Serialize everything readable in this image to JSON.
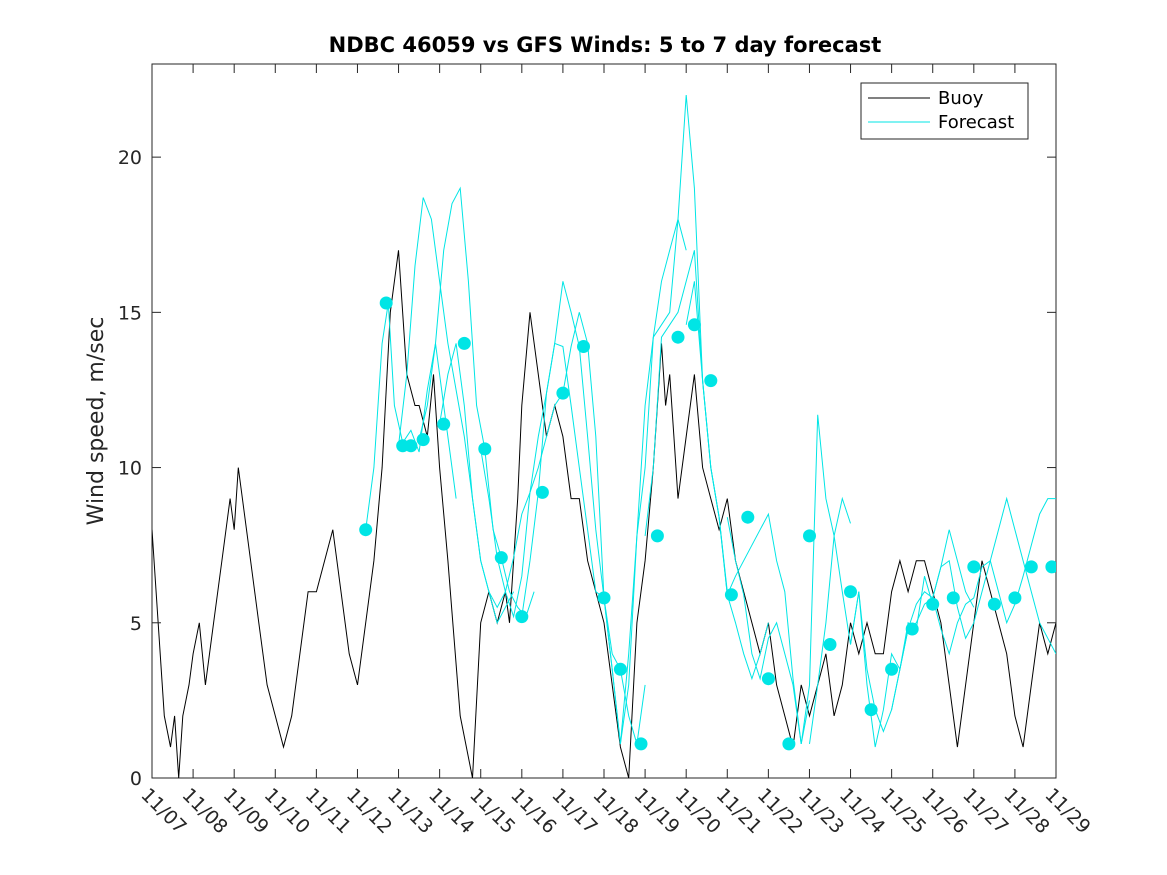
{
  "chart_data": {
    "type": "line",
    "title": "NDBC 46059 vs GFS Winds: 5 to 7 day forecast",
    "xlabel": "",
    "ylabel": "Wind speed, m/sec",
    "xlim": [
      0,
      22
    ],
    "ylim": [
      0,
      23
    ],
    "yticks": [
      0,
      5,
      10,
      15,
      20
    ],
    "xtick_labels": [
      "11/07",
      "11/08",
      "11/09",
      "11/10",
      "11/11",
      "11/12",
      "11/13",
      "11/14",
      "11/15",
      "11/16",
      "11/17",
      "11/18",
      "11/19",
      "11/20",
      "11/21",
      "11/22",
      "11/23",
      "11/24",
      "11/25",
      "11/26",
      "11/27",
      "11/28",
      "11/29"
    ],
    "legend": {
      "position": "top-right",
      "entries": [
        "Buoy",
        "Forecast"
      ]
    },
    "colors": {
      "buoy": "#000000",
      "forecast": "#00e5e5",
      "axis": "#262626"
    },
    "series": [
      {
        "name": "Buoy",
        "x": [
          0.0,
          0.1,
          0.2,
          0.3,
          0.45,
          0.55,
          0.65,
          0.75,
          0.9,
          1.0,
          1.15,
          1.3,
          1.5,
          1.7,
          1.9,
          2.0,
          2.1,
          2.2,
          2.4,
          2.6,
          2.8,
          3.0,
          3.2,
          3.4,
          3.6,
          3.8,
          4.0,
          4.2,
          4.4,
          4.6,
          4.8,
          5.0,
          5.2,
          5.4,
          5.6,
          5.8,
          6.0,
          6.2,
          6.4,
          6.5,
          6.7,
          6.85,
          7.0,
          7.2,
          7.5,
          7.8,
          8.0,
          8.2,
          8.4,
          8.6,
          8.7,
          8.8,
          8.9,
          9.0,
          9.2,
          9.4,
          9.6,
          9.8,
          10.0,
          10.2,
          10.4,
          10.6,
          10.8,
          11.0,
          11.2,
          11.4,
          11.6,
          11.8,
          12.0,
          12.2,
          12.4,
          12.5,
          12.6,
          12.7,
          12.8,
          13.0,
          13.2,
          13.4,
          13.6,
          13.8,
          14.0,
          14.2,
          14.4,
          14.6,
          14.8,
          15.0,
          15.2,
          15.4,
          15.6,
          15.8,
          16.0,
          16.2,
          16.4,
          16.6,
          16.8,
          17.0,
          17.2,
          17.4,
          17.6,
          17.8,
          18.0,
          18.2,
          18.4,
          18.6,
          18.8,
          19.0,
          19.2,
          19.4,
          19.6,
          19.8,
          20.0,
          20.2,
          20.4,
          20.6,
          20.8,
          21.0,
          21.2,
          21.4,
          21.6,
          21.8,
          22.0
        ],
        "values": [
          8,
          6,
          4,
          2,
          1,
          2,
          0,
          2,
          3,
          4,
          5,
          3,
          5,
          7,
          9,
          8,
          10,
          9,
          7,
          5,
          3,
          2,
          1,
          2,
          4,
          6,
          6,
          7,
          8,
          6,
          4,
          3,
          5,
          7,
          10,
          15,
          17,
          13,
          12,
          12,
          11,
          13,
          10,
          7,
          2,
          0,
          5,
          6,
          5,
          6,
          5,
          7,
          9,
          12,
          15,
          13,
          11,
          12,
          11,
          9,
          9,
          7,
          6,
          5,
          3,
          1,
          0,
          5,
          7,
          10,
          14,
          12,
          13,
          11,
          9,
          11,
          13,
          10,
          9,
          8,
          9,
          7,
          6,
          5,
          4,
          5,
          3,
          2,
          1,
          3,
          2,
          3,
          4,
          2,
          3,
          5,
          4,
          5,
          4,
          4,
          6,
          7,
          6,
          7,
          7,
          6,
          5,
          3,
          1,
          3,
          5,
          7,
          6,
          5,
          4,
          2,
          1,
          3,
          5,
          4,
          5
        ]
      },
      {
        "name": "Forecast",
        "segments": [
          {
            "x": [
              5.2,
              5.4,
              5.6,
              5.75,
              5.9,
              6.1,
              6.3,
              6.5,
              6.7,
              6.9,
              7.1,
              7.3,
              7.4
            ],
            "values": [
              8.0,
              10.0,
              14.0,
              15.3,
              12.0,
              10.8,
              11.2,
              10.5,
              12.5,
              14.0,
              12.0,
              10.0,
              9.0
            ]
          },
          {
            "x": [
              6.0,
              6.2,
              6.4,
              6.6,
              6.8,
              7.0,
              7.2,
              7.4,
              7.6,
              7.8,
              8.0,
              8.2,
              8.4,
              8.6,
              8.8
            ],
            "values": [
              10.7,
              13.0,
              16.5,
              18.7,
              18.0,
              16.0,
              14.0,
              12.5,
              11.0,
              9.0,
              7.0,
              6.0,
              5.0,
              5.5,
              6.0
            ]
          },
          {
            "x": [
              6.5,
              6.7,
              6.9,
              7.1,
              7.3,
              7.5,
              7.7,
              7.9,
              8.1,
              8.3,
              8.5,
              8.7,
              8.9,
              9.1,
              9.3
            ],
            "values": [
              10.9,
              12.0,
              14.0,
              17.0,
              18.5,
              19.0,
              16.0,
              12.0,
              10.6,
              8.0,
              7.1,
              6.0,
              5.5,
              5.2,
              6.0
            ]
          },
          {
            "x": [
              7.0,
              7.2,
              7.4,
              7.6,
              7.8,
              8.0,
              8.2,
              8.4,
              8.6,
              8.8,
              9.0,
              9.2,
              9.4,
              9.6,
              9.8,
              10.0
            ],
            "values": [
              11.4,
              13.0,
              14.0,
              12.0,
              9.0,
              7.0,
              6.0,
              5.5,
              6.0,
              7.1,
              8.5,
              9.2,
              10.0,
              11.0,
              12.0,
              12.4
            ]
          },
          {
            "x": [
              8.0,
              8.2,
              8.4,
              8.6,
              8.8,
              9.0,
              9.2,
              9.4,
              9.6,
              9.8,
              10.0,
              10.2,
              10.4,
              10.6,
              10.8,
              11.0
            ],
            "values": [
              10.6,
              9.0,
              7.1,
              6.0,
              5.2,
              6.5,
              9.2,
              11.0,
              12.4,
              14.0,
              13.9,
              12.0,
              10.0,
              8.0,
              6.0,
              5.8
            ]
          },
          {
            "x": [
              9.0,
              9.2,
              9.4,
              9.6,
              9.8,
              10.0,
              10.2,
              10.4,
              10.6,
              10.8,
              11.0,
              11.2,
              11.4,
              11.6,
              11.8,
              12.0
            ],
            "values": [
              5.2,
              7.0,
              9.2,
              12.4,
              14.0,
              16.0,
              15.0,
              13.9,
              11.0,
              8.0,
              5.8,
              4.0,
              3.5,
              2.0,
              1.1,
              3.0
            ]
          },
          {
            "x": [
              10.0,
              10.2,
              10.4,
              10.6,
              10.8,
              11.0,
              11.2,
              11.4,
              11.6,
              11.8,
              12.0,
              12.2,
              12.4,
              12.6,
              12.8,
              13.0
            ],
            "values": [
              12.4,
              13.9,
              15.0,
              14.0,
              11.0,
              5.8,
              3.5,
              1.1,
              4.0,
              7.8,
              10.0,
              14.2,
              16.0,
              17.0,
              18.0,
              17.0
            ]
          },
          {
            "x": [
              11.0,
              11.2,
              11.4,
              11.6,
              11.8,
              12.0,
              12.2,
              12.4,
              12.6,
              12.8,
              13.0,
              13.2,
              13.4,
              13.6,
              13.8,
              14.0
            ],
            "values": [
              5.8,
              3.5,
              1.1,
              3.0,
              7.8,
              12.0,
              14.2,
              14.6,
              15.0,
              18.0,
              22.0,
              19.0,
              12.8,
              10.0,
              8.4,
              6.0
            ]
          },
          {
            "x": [
              12.0,
              12.2,
              12.4,
              12.6,
              12.8,
              13.0,
              13.2,
              13.4,
              13.6,
              13.8,
              14.0,
              14.2,
              14.4,
              14.6,
              14.8,
              15.0
            ],
            "values": [
              7.8,
              10.0,
              14.2,
              14.6,
              15.0,
              16.0,
              17.0,
              12.8,
              10.0,
              8.4,
              5.9,
              5.0,
              4.0,
              3.2,
              4.0,
              5.0
            ]
          },
          {
            "x": [
              13.0,
              13.2,
              13.4,
              13.6,
              13.8,
              14.0,
              14.2,
              14.4,
              14.6,
              14.8,
              15.0,
              15.2,
              15.4,
              15.6,
              15.8,
              16.0
            ],
            "values": [
              14.6,
              16.0,
              12.8,
              10.0,
              8.4,
              5.9,
              6.5,
              7.0,
              7.5,
              8.0,
              8.5,
              7.0,
              6.0,
              3.2,
              1.1,
              2.5
            ]
          },
          {
            "x": [
              14.0,
              14.2,
              14.4,
              14.6,
              14.8,
              15.0,
              15.2,
              15.4,
              15.6,
              15.8,
              16.0,
              16.2,
              16.4,
              16.6,
              16.8,
              17.0
            ],
            "values": [
              8.4,
              7.0,
              5.9,
              4.0,
              3.2,
              4.5,
              5.0,
              4.0,
              3.0,
              1.1,
              3.0,
              11.7,
              9.0,
              7.8,
              9.0,
              8.2
            ]
          },
          {
            "x": [
              16.0,
              16.2,
              16.4,
              16.6,
              16.8,
              17.0,
              17.2,
              17.4,
              17.6,
              17.8,
              18.0,
              18.2,
              18.4,
              18.6,
              18.8,
              19.0
            ],
            "values": [
              1.1,
              3.0,
              5.0,
              7.8,
              6.0,
              4.3,
              6.0,
              3.0,
              1.0,
              2.2,
              4.0,
              3.5,
              5.0,
              4.8,
              6.5,
              5.6
            ]
          },
          {
            "x": [
              17.0,
              17.2,
              17.4,
              17.6,
              17.8,
              18.0,
              18.2,
              18.4,
              18.6,
              18.8,
              19.0,
              19.2,
              19.4,
              19.6,
              19.8,
              20.0
            ],
            "values": [
              4.3,
              6.0,
              3.5,
              2.2,
              1.5,
              2.2,
              3.5,
              4.8,
              5.6,
              6.0,
              5.8,
              6.8,
              8.0,
              7.0,
              6.0,
              5.5
            ]
          },
          {
            "x": [
              18.0,
              18.2,
              18.4,
              18.6,
              18.8,
              19.0,
              19.2,
              19.4,
              19.6,
              19.8,
              20.0,
              20.2,
              20.4,
              20.6,
              20.8,
              21.0,
              21.2,
              21.4,
              21.6,
              21.8,
              22.0
            ],
            "values": [
              2.2,
              3.5,
              4.8,
              5.0,
              5.6,
              5.8,
              6.8,
              7.0,
              5.5,
              4.5,
              5.0,
              6.0,
              7.0,
              8.0,
              9.0,
              8.0,
              7.0,
              6.0,
              5.0,
              4.5,
              4.0
            ]
          },
          {
            "x": [
              19.0,
              19.2,
              19.4,
              19.6,
              19.8,
              20.0,
              20.2,
              20.4,
              20.6,
              20.8,
              21.0,
              21.2,
              21.4,
              21.6,
              21.8,
              22.0
            ],
            "values": [
              5.8,
              4.8,
              4.0,
              5.0,
              5.6,
              5.8,
              6.8,
              7.0,
              6.0,
              5.0,
              5.6,
              6.5,
              7.5,
              8.5,
              9.0,
              9.0
            ]
          }
        ],
        "markers": {
          "x": [
            5.2,
            5.7,
            6.1,
            6.3,
            6.6,
            7.1,
            7.6,
            8.1,
            8.5,
            9.0,
            9.5,
            10.0,
            10.5,
            11.0,
            11.4,
            11.9,
            12.3,
            12.8,
            13.2,
            13.6,
            14.1,
            14.5,
            15.0,
            15.5,
            16.0,
            16.5,
            17.0,
            17.5,
            18.0,
            18.5,
            19.0,
            19.5,
            20.0,
            20.5,
            21.0,
            21.4,
            21.9
          ],
          "values": [
            8.0,
            15.3,
            10.7,
            10.7,
            10.9,
            11.4,
            14.0,
            10.6,
            7.1,
            5.2,
            9.2,
            12.4,
            13.9,
            5.8,
            3.5,
            1.1,
            7.8,
            14.2,
            14.6,
            12.8,
            5.9,
            8.4,
            3.2,
            1.1,
            7.8,
            4.3,
            6.0,
            2.2,
            3.5,
            4.8,
            5.6,
            5.8,
            6.8,
            5.6,
            5.8,
            6.8,
            6.8
          ]
        }
      }
    ]
  }
}
